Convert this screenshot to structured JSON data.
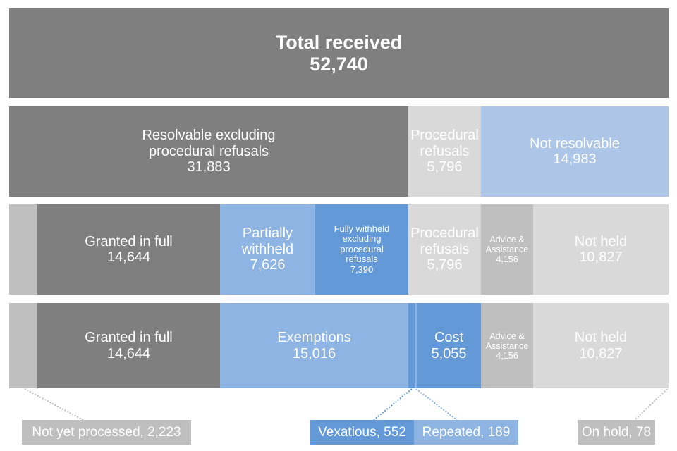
{
  "total": {
    "label": "Total received",
    "value": "52,740"
  },
  "row2": [
    {
      "label": "Resolvable excluding procedural refusals",
      "value": "31,883"
    },
    {
      "label": "Procedural refusals",
      "value": "5,796"
    },
    {
      "label": "Not resolvable",
      "value": "14,983"
    }
  ],
  "row3": [
    {
      "label": "Granted in full",
      "value": "14,644"
    },
    {
      "label": "Partially withheld",
      "value": "7,626"
    },
    {
      "label": "Fully withheld excluding procedural refusals",
      "value": "7,390"
    },
    {
      "label": "Procedural refusals",
      "value": "5,796"
    },
    {
      "label": "Advice & Assistance",
      "value": "4,156"
    },
    {
      "label": "Not held",
      "value": "10,827"
    }
  ],
  "row4": [
    {
      "label": "Granted in full",
      "value": "14,644"
    },
    {
      "label": "Exemptions",
      "value": "15,016"
    },
    {
      "label": "Cost",
      "value": "5,055"
    },
    {
      "label": "Advice & Assistance",
      "value": "4,156"
    },
    {
      "label": "Not held",
      "value": "10,827"
    }
  ],
  "callouts": {
    "not_yet_processed": "Not yet processed, 2,223",
    "vexatious": "Vexatious, 552",
    "repeated": "Repeated, 189",
    "on_hold": "On hold, 78"
  },
  "colors": {
    "dark_grey": "#7f7f7f",
    "light_grey": "#d9d9d9",
    "mid_grey": "#bfbfbf",
    "light_blue": "#8db4e2",
    "mid_blue": "#6399d6",
    "pale_blue": "#adc5e6"
  }
}
